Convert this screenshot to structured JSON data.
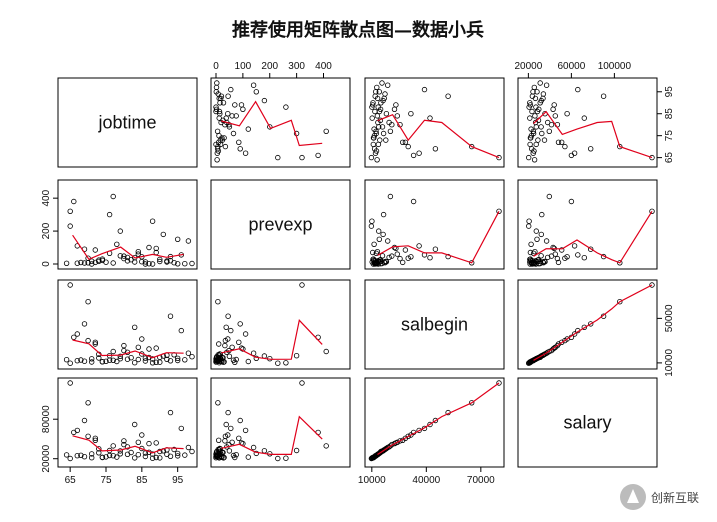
{
  "chart_data": {
    "type": "scatter",
    "title": "推荐使用矩阵散点图—数据小兵",
    "variables": [
      "jobtime",
      "prevexp",
      "salbegin",
      "salary"
    ],
    "axes": {
      "jobtime": {
        "range": [
          63,
          99
        ],
        "ticks": [
          65,
          75,
          85,
          95
        ],
        "tick_labels": [
          "65",
          "75",
          "85",
          "95"
        ]
      },
      "prevexp": {
        "range": [
          0,
          480
        ],
        "ticks": [
          0,
          100,
          200,
          300,
          400
        ],
        "tick_labels": [
          "0",
          "100",
          "200",
          "300",
          "400"
        ],
        "left_ticks": [
          0,
          200,
          400
        ],
        "left_tick_labels": [
          "0",
          "200",
          "400"
        ]
      },
      "salbegin": {
        "range": [
          9000,
          80000
        ],
        "ticks": [
          10000,
          40000,
          70000
        ],
        "tick_labels": [
          "10000",
          "40000",
          "70000"
        ],
        "right_ticks": [
          10000,
          50000
        ],
        "right_tick_labels": [
          "10000",
          "50000"
        ]
      },
      "salary": {
        "range": [
          15000,
          135000
        ],
        "ticks": [
          20000,
          60000,
          100000
        ],
        "tick_labels": [
          "20000",
          "60000",
          "100000"
        ],
        "left_ticks": [
          20000,
          80000
        ],
        "left_tick_labels": [
          "20000",
          "80000"
        ]
      }
    },
    "smoother_color": "#e0001b",
    "point_color": "#000000",
    "observations": {
      "jobtime": [
        67,
        90,
        88,
        80,
        78,
        94,
        65,
        73,
        84,
        97,
        70,
        83,
        76,
        92,
        69,
        86,
        81,
        95,
        72,
        77,
        89,
        66,
        99,
        74,
        85,
        79,
        93,
        68,
        87,
        71,
        82,
        96,
        75,
        91,
        64,
        80,
        88,
        73,
        84,
        70,
        93,
        77,
        86,
        67,
        95,
        79,
        90,
        72,
        81,
        98,
        69,
        83,
        76,
        92,
        65,
        87,
        74,
        89,
        71,
        85
      ],
      "prevexp": [
        5,
        15,
        0,
        48,
        120,
        8,
        230,
        24,
        60,
        2,
        35,
        12,
        300,
        18,
        90,
        0,
        40,
        150,
        10,
        6,
        70,
        380,
        3,
        22,
        14,
        200,
        45,
        9,
        100,
        0,
        26,
        55,
        11,
        180,
        4,
        33,
        260,
        16,
        75,
        7,
        20,
        410,
        13,
        110,
        1,
        50,
        28,
        85,
        19,
        140,
        6,
        38,
        65,
        12,
        320,
        2,
        30,
        95,
        17,
        44
      ],
      "salbegin": [
        12000,
        15000,
        13500,
        21000,
        11250,
        17250,
        9750,
        14400,
        24000,
        12750,
        30000,
        10200,
        16500,
        13200,
        45000,
        11700,
        19500,
        14100,
        27000,
        12300,
        10500,
        33000,
        15600,
        11100,
        18000,
        13800,
        52000,
        12600,
        22500,
        10800,
        14700,
        39000,
        11400,
        16200,
        12900,
        25500,
        10050,
        17700,
        13050,
        65000,
        11850,
        20250,
        14250,
        36000,
        12150,
        15900,
        10650,
        28500,
        13350,
        18750,
        11550,
        42000,
        12450,
        16800,
        79980,
        14850,
        10950,
        23250,
        13650,
        31500
      ],
      "salary": [
        24500,
        31000,
        27000,
        41500,
        22500,
        34000,
        20300,
        28900,
        45000,
        25500,
        54000,
        21300,
        32500,
        26500,
        78000,
        23400,
        38000,
        28000,
        48000,
        24600,
        21900,
        60000,
        31000,
        22200,
        35500,
        27400,
        90000,
        25200,
        43000,
        21600,
        29400,
        66000,
        22800,
        32000,
        25800,
        47000,
        20700,
        35000,
        26100,
        105000,
        23700,
        39500,
        28500,
        63000,
        24300,
        31800,
        21300,
        51000,
        26700,
        37000,
        23100,
        72000,
        24900,
        33600,
        135000,
        29700,
        21900,
        44000,
        27300,
        56000
      ]
    }
  },
  "watermark": {
    "label": "创新互联"
  }
}
